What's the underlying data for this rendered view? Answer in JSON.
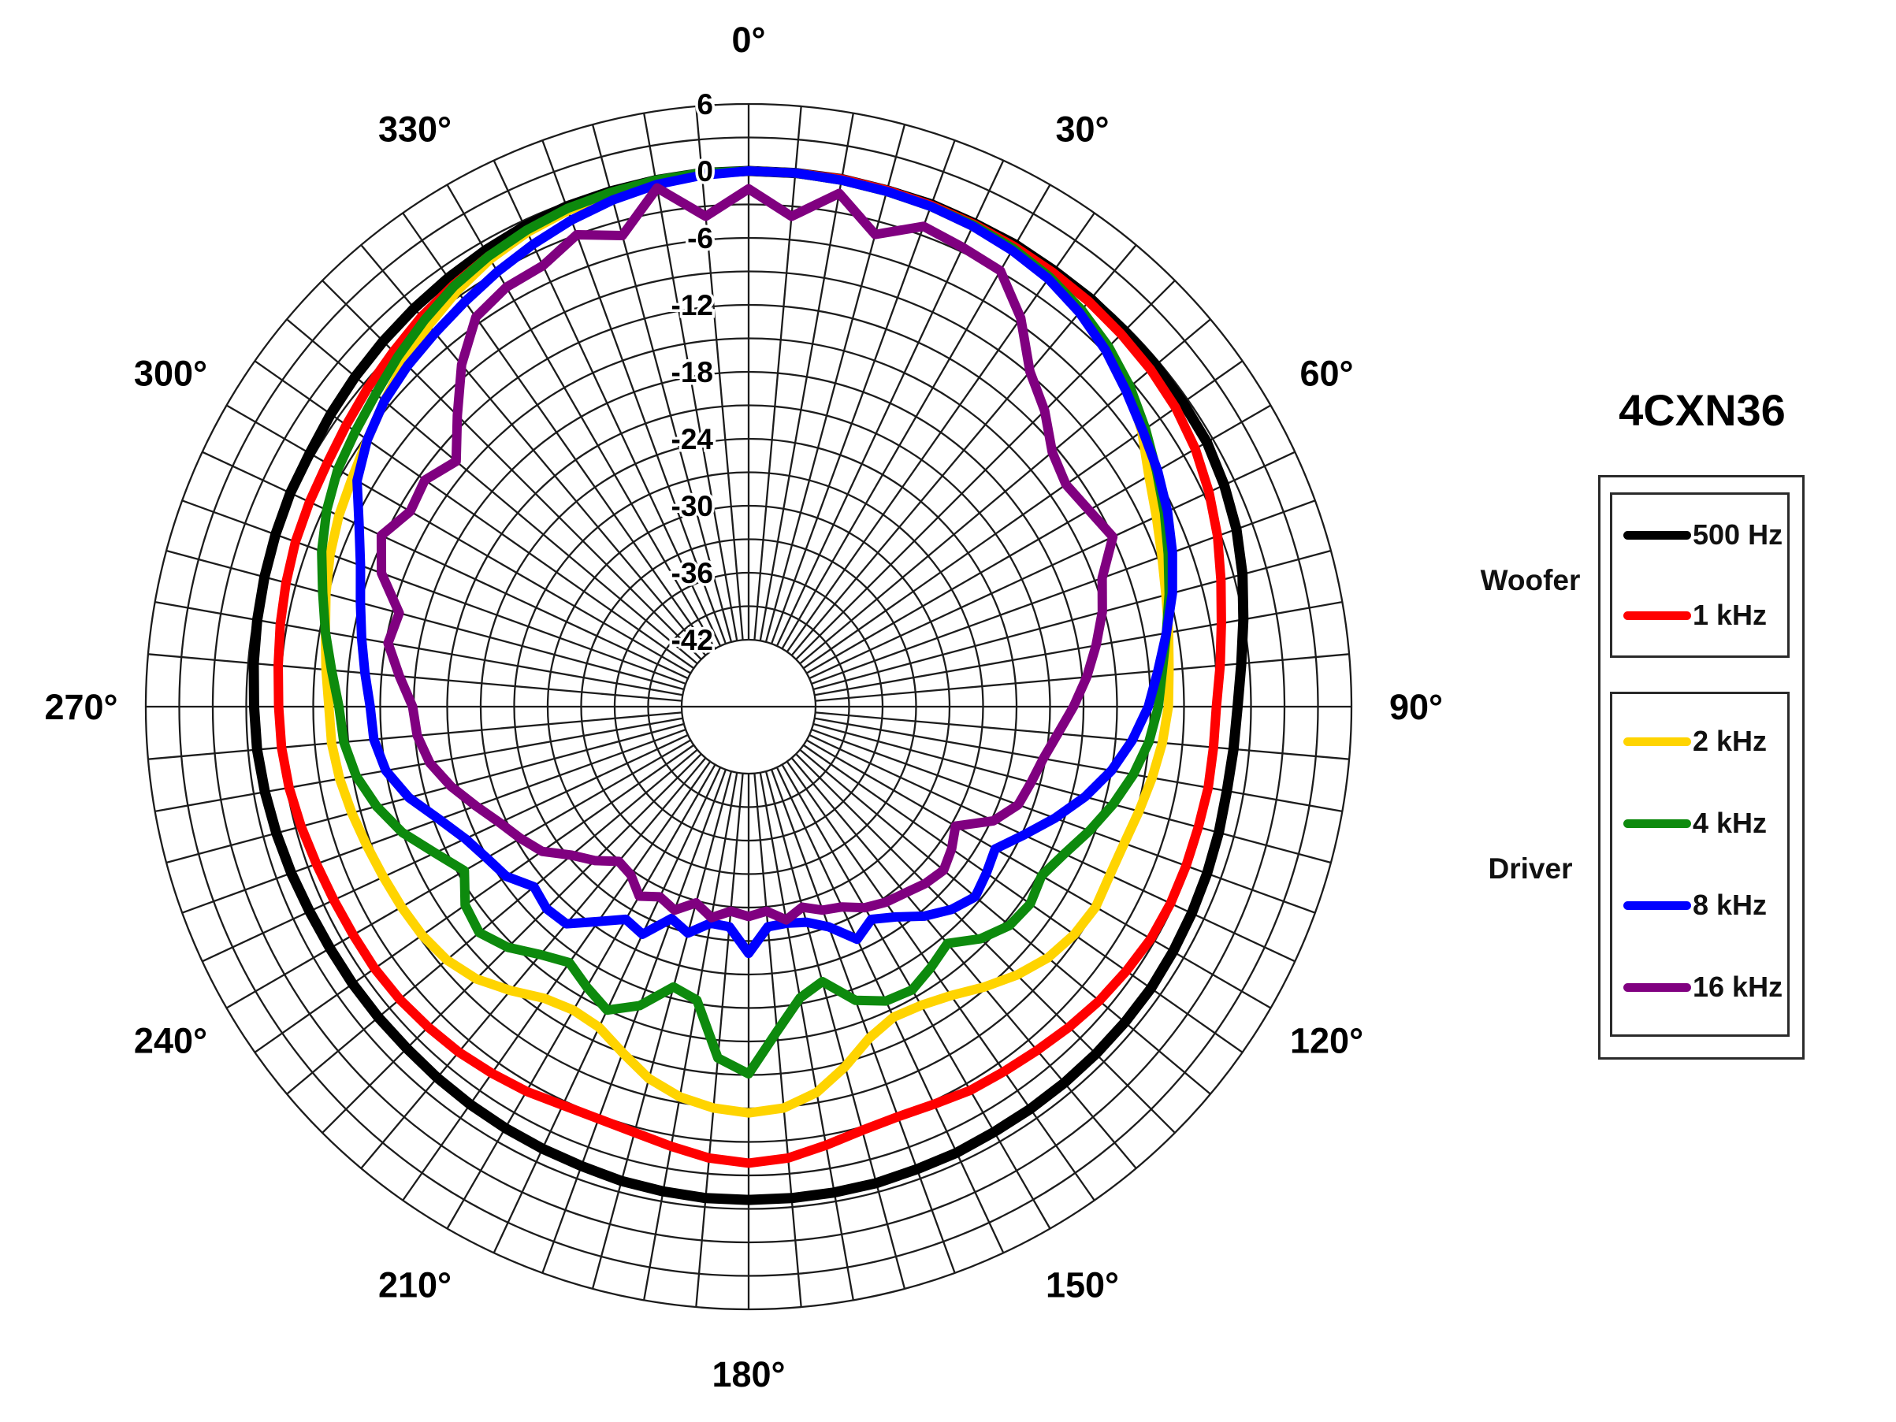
{
  "title": "4CXN36",
  "legend": {
    "groups": [
      {
        "label": "Woofer",
        "entries": [
          {
            "label": "500 Hz",
            "color": "#000000"
          },
          {
            "label": "1 kHz",
            "color": "#ff0000"
          }
        ]
      },
      {
        "label": "Driver",
        "entries": [
          {
            "label": "2 kHz",
            "color": "#ffd400"
          },
          {
            "label": "4 kHz",
            "color": "#0d8a0d"
          },
          {
            "label": "8 kHz",
            "color": "#0000ff"
          },
          {
            "label": "16 kHz",
            "color": "#800080"
          }
        ]
      }
    ]
  },
  "chart_data": {
    "type": "line",
    "subtype": "polar",
    "title": "4CXN36",
    "units": "dB",
    "grid": {
      "center_x": 950,
      "center_y": 897,
      "outer_radius_px": 765,
      "radial_max_db": 6,
      "radial_center_db": -48,
      "inner_hole_db": -42,
      "ring_step_db": 3,
      "spoke_step_deg": 5
    },
    "radial_tick_labels": [
      "6",
      "0",
      "-6",
      "-12",
      "-18",
      "-24",
      "-30",
      "-36",
      "-42"
    ],
    "radial_tick_values": [
      6,
      0,
      -6,
      -12,
      -18,
      -24,
      -30,
      -36,
      -42
    ],
    "angle_labels": [
      "0°",
      "30°",
      "60°",
      "90°",
      "120°",
      "150°",
      "180°",
      "210°",
      "240°",
      "270°",
      "300°",
      "330°"
    ],
    "angle_step_deg": 5,
    "series": [
      {
        "name": "500 Hz",
        "color": "#000000",
        "width": 13,
        "values": [
          0,
          0,
          0,
          -0.1,
          -0.1,
          -0.2,
          -0.2,
          -0.3,
          -0.3,
          -0.4,
          -0.4,
          -0.5,
          -0.6,
          -1.0,
          -1.5,
          -2.2,
          -3.0,
          -3.7,
          -4.2,
          -4.4,
          -4.5,
          -4.4,
          -4.3,
          -4.2,
          -4.1,
          -4.0,
          -4.0,
          -4.0,
          -4.0,
          -4.0,
          -4.0,
          -3.9,
          -3.9,
          -3.8,
          -3.8,
          -3.8,
          -3.8,
          -3.8,
          -3.9,
          -4.0,
          -4.2,
          -4.3,
          -4.4,
          -4.5,
          -4.6,
          -4.7,
          -4.7,
          -4.7,
          -4.7,
          -4.6,
          -4.4,
          -4.2,
          -4.0,
          -3.8,
          -3.7,
          -3.5,
          -3.3,
          -3.1,
          -2.9,
          -2.7,
          -2.6,
          -2.3,
          -2.0,
          -1.7,
          -1.4,
          -1.1,
          -0.8,
          -0.5,
          -0.3,
          -0.2,
          -0.1,
          0
        ]
      },
      {
        "name": "1 kHz",
        "color": "#ff0000",
        "width": 12,
        "values": [
          0,
          0,
          0,
          -0.1,
          -0.2,
          -0.3,
          -0.4,
          -0.5,
          -0.6,
          -0.8,
          -1.0,
          -1.3,
          -1.8,
          -2.5,
          -3.3,
          -4.2,
          -5.0,
          -5.6,
          -6.1,
          -6.2,
          -6.2,
          -6.3,
          -6.3,
          -6.3,
          -6.4,
          -6.7,
          -7.0,
          -7.4,
          -7.8,
          -8.1,
          -8.3,
          -8.7,
          -8.9,
          -8.7,
          -8.1,
          -7.4,
          -7.1,
          -7.4,
          -8.0,
          -8.5,
          -8.7,
          -8.6,
          -8.2,
          -7.9,
          -7.6,
          -7.4,
          -7.2,
          -7.1,
          -7.1,
          -7.0,
          -6.8,
          -6.5,
          -6.2,
          -6.0,
          -5.9,
          -5.7,
          -5.4,
          -5.1,
          -4.8,
          -4.6,
          -4.4,
          -4.0,
          -3.5,
          -3.0,
          -2.4,
          -1.9,
          -1.4,
          -1.0,
          -0.6,
          -0.4,
          -0.2,
          -0.1
        ]
      },
      {
        "name": "2 kHz",
        "color": "#ffd400",
        "width": 12,
        "values": [
          0,
          0,
          -0.1,
          -0.2,
          -0.3,
          -0.5,
          -0.7,
          -1.1,
          -1.7,
          -2.5,
          -3.6,
          -5.0,
          -6.6,
          -7.7,
          -8.6,
          -9.3,
          -9.8,
          -10.2,
          -10.4,
          -10.8,
          -11.3,
          -11.8,
          -12.2,
          -12.3,
          -12.1,
          -12.4,
          -13.0,
          -14.0,
          -15.2,
          -16.4,
          -17.1,
          -17.3,
          -16.4,
          -14.6,
          -12.9,
          -11.9,
          -11.6,
          -11.9,
          -12.5,
          -13.5,
          -15.0,
          -16.3,
          -16.6,
          -16.1,
          -14.8,
          -13.5,
          -12.7,
          -12.3,
          -12.1,
          -11.9,
          -11.6,
          -11.2,
          -10.8,
          -10.5,
          -10.4,
          -10.0,
          -9.5,
          -8.8,
          -8.1,
          -7.5,
          -7.0,
          -6.3,
          -5.4,
          -4.4,
          -3.4,
          -2.5,
          -1.7,
          -1.1,
          -0.7,
          -0.4,
          -0.2,
          -0.1
        ]
      },
      {
        "name": "4 kHz",
        "color": "#0d8a0d",
        "width": 12,
        "values": [
          0,
          0,
          -0.1,
          -0.2,
          -0.3,
          -0.4,
          -0.6,
          -1.0,
          -1.6,
          -2.4,
          -3.4,
          -4.6,
          -5.8,
          -6.9,
          -8.0,
          -9.0,
          -10.0,
          -10.8,
          -11.3,
          -12.0,
          -13.0,
          -14.2,
          -15.5,
          -16.8,
          -17.7,
          -17.2,
          -17.5,
          -18.6,
          -20.3,
          -19.5,
          -18.7,
          -18.9,
          -20.0,
          -22.5,
          -21.5,
          -18.8,
          -15.1,
          -16.4,
          -21.3,
          -22.0,
          -19.5,
          -18.0,
          -19.0,
          -20.0,
          -19.0,
          -17.5,
          -16.5,
          -17.0,
          -18.6,
          -17.0,
          -15.0,
          -13.5,
          -12.3,
          -11.6,
          -11.3,
          -10.5,
          -9.5,
          -8.5,
          -7.3,
          -6.3,
          -5.5,
          -5.0,
          -4.4,
          -3.6,
          -2.8,
          -2.0,
          -1.4,
          -0.9,
          -0.5,
          -0.3,
          -0.1,
          0
        ]
      },
      {
        "name": "8 kHz",
        "color": "#0000ff",
        "width": 12,
        "values": [
          0,
          0,
          -0.1,
          -0.2,
          -0.3,
          -0.5,
          -0.8,
          -1.2,
          -1.9,
          -2.8,
          -3.9,
          -4.9,
          -5.7,
          -6.6,
          -7.6,
          -8.7,
          -10.0,
          -11.2,
          -12.2,
          -13.5,
          -15.0,
          -16.8,
          -18.8,
          -20.8,
          -22.5,
          -22.0,
          -21.5,
          -22.3,
          -23.5,
          -25.0,
          -26.0,
          -25.0,
          -27.0,
          -28.0,
          -28.3,
          -28.2,
          -25.9,
          -28.2,
          -28.3,
          -27.0,
          -27.8,
          -25.5,
          -26.0,
          -24.5,
          -22.6,
          -22.4,
          -22.9,
          -21.5,
          -20.9,
          -20.0,
          -18.5,
          -16.5,
          -15.0,
          -14.3,
          -14.1,
          -13.5,
          -12.8,
          -12.0,
          -11.0,
          -9.5,
          -7.5,
          -6.3,
          -5.4,
          -4.8,
          -4.3,
          -3.7,
          -3.0,
          -2.3,
          -1.6,
          -1.0,
          -0.5,
          -0.2
        ]
      },
      {
        "name": "16 kHz",
        "color": "#800080",
        "width": 12,
        "values": [
          -1.6,
          -3.9,
          -1.3,
          -4.2,
          -2.2,
          -2.6,
          -2.9,
          -5.5,
          -8.8,
          -10.5,
          -12.5,
          -13.3,
          -12.8,
          -12.0,
          -14.3,
          -15.2,
          -16.4,
          -17.6,
          -18.9,
          -20.2,
          -21.2,
          -21.8,
          -22.3,
          -23.8,
          -26.6,
          -25.8,
          -25.2,
          -25.6,
          -26.2,
          -26.6,
          -27.2,
          -28.2,
          -28.6,
          -29.4,
          -28.6,
          -29.6,
          -29.2,
          -29.6,
          -28.8,
          -29.8,
          -28.6,
          -29.2,
          -28.4,
          -29.6,
          -29.9,
          -28.5,
          -27.3,
          -25.4,
          -24.4,
          -23.4,
          -22.0,
          -20.4,
          -19.0,
          -18.2,
          -17.9,
          -16.6,
          -15.2,
          -15.6,
          -13.0,
          -11.7,
          -13.0,
          -12.6,
          -13.8,
          -11.1,
          -8.0,
          -5.4,
          -4.6,
          -4.4,
          -3.0,
          -4.3,
          -0.8,
          -3.9
        ]
      }
    ]
  }
}
